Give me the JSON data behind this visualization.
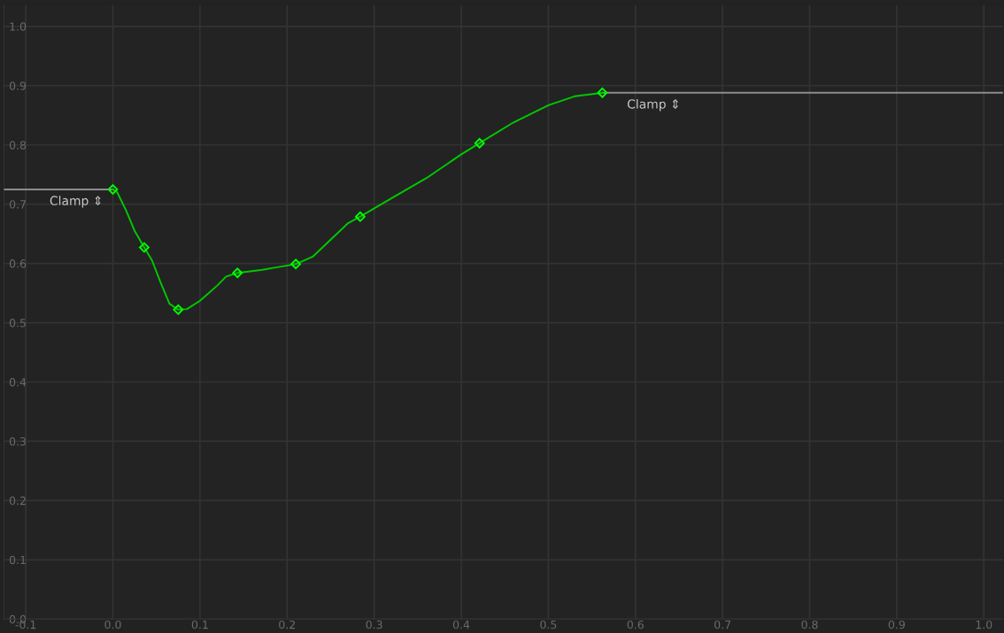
{
  "chart_data": {
    "type": "line",
    "xlim": [
      -0.125,
      1.022
    ],
    "ylim": [
      0,
      1.036
    ],
    "xticks": [
      {
        "value": -0.1,
        "label": "-0.1"
      },
      {
        "value": 0,
        "label": "0.0"
      },
      0.1,
      0.2,
      0.3,
      0.4,
      0.5,
      0.6,
      0.7,
      0.8,
      0.9,
      {
        "value": 1,
        "label": "1.0"
      }
    ],
    "yticks": [
      {
        "value": 0,
        "label": "0.0"
      },
      0.1,
      0.2,
      0.3,
      0.4,
      0.5,
      0.6,
      0.7,
      0.8,
      0.9,
      {
        "value": 1,
        "label": "1.0"
      }
    ],
    "grid": true,
    "line_style": "solid",
    "series": [
      {
        "color": "#8c8c8c",
        "x": [
          -0.125,
          0
        ],
        "values": [
          0.725,
          0.725
        ]
      },
      {
        "color": "#8c8c8c",
        "x": [
          0.562,
          1.022
        ],
        "values": [
          0.888,
          0.888
        ]
      },
      {
        "color": "#00c800",
        "x": [
          0,
          0.005,
          0.015,
          0.025,
          0.036,
          0.045,
          0.055,
          0.065,
          0.075,
          0.085,
          0.1,
          0.12,
          0.13,
          0.143,
          0.17,
          0.19,
          0.21,
          0.23,
          0.25,
          0.27,
          0.284,
          0.32,
          0.36,
          0.4,
          0.421,
          0.46,
          0.5,
          0.53,
          0.562
        ],
        "values": [
          0.725,
          0.72,
          0.69,
          0.655,
          0.627,
          0.605,
          0.567,
          0.532,
          0.522,
          0.523,
          0.537,
          0.563,
          0.578,
          0.584,
          0.589,
          0.594,
          0.599,
          0.612,
          0.64,
          0.668,
          0.679,
          0.71,
          0.744,
          0.784,
          0.803,
          0.838,
          0.867,
          0.882,
          0.888
        ]
      },
      {
        "type": "scatter",
        "color": "#00ff00",
        "marker": "diamond",
        "x": [
          0,
          0.036,
          0.075,
          0.143,
          0.21,
          0.284,
          0.421,
          0.562
        ],
        "values": [
          0.725,
          0.627,
          0.522,
          0.584,
          0.599,
          0.679,
          0.803,
          0.888
        ]
      }
    ],
    "annotations": [
      {
        "text": "Clamp ⇕",
        "x": 0,
        "y": 0.725
      },
      {
        "text": "Clamp ⇕",
        "x": 0.562,
        "y": 0.888
      }
    ]
  }
}
